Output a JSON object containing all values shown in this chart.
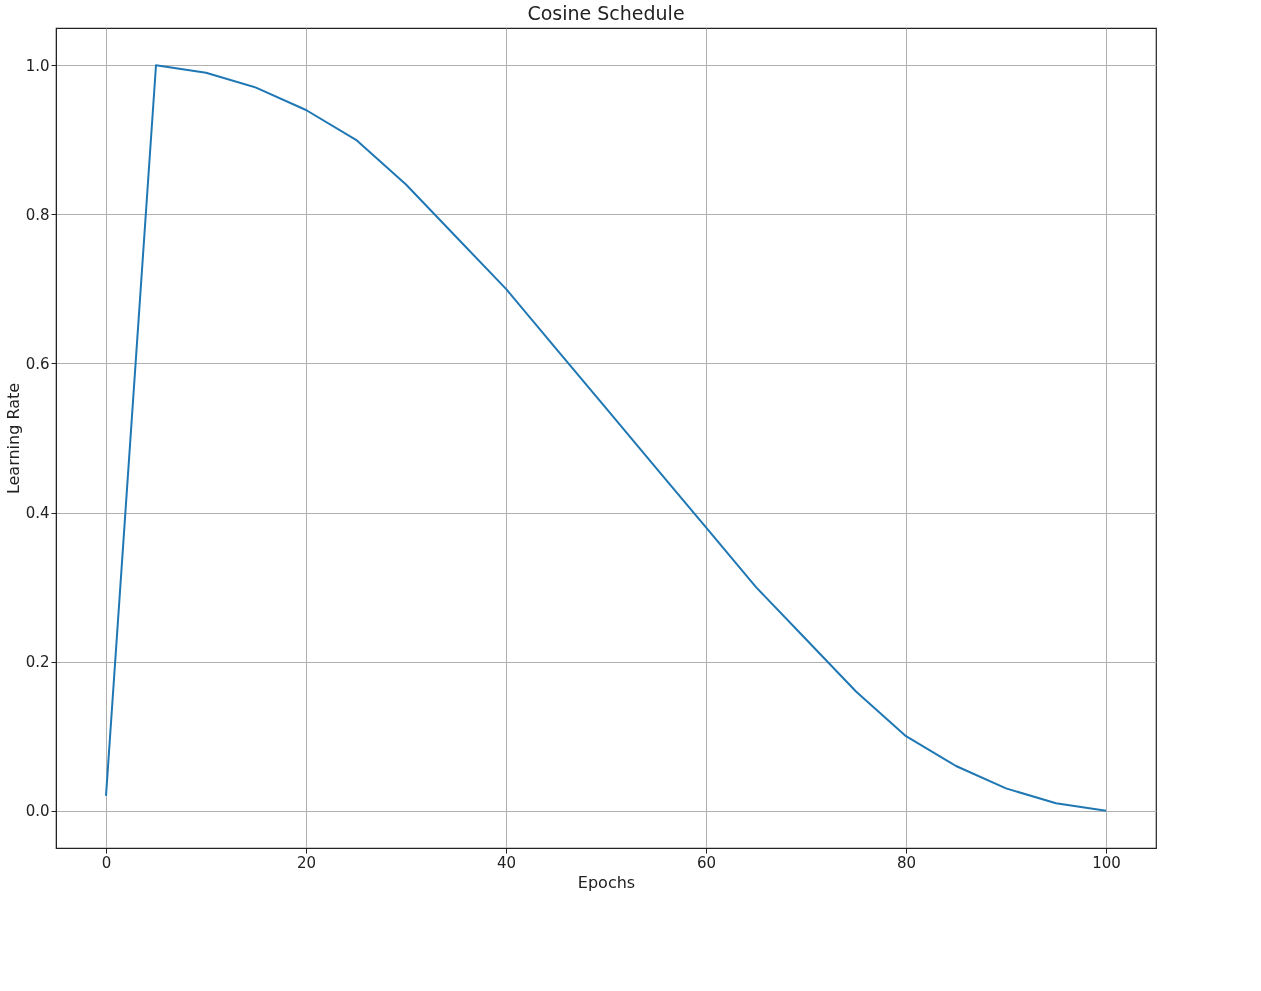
{
  "chart_data": {
    "type": "line",
    "title": "Cosine Schedule",
    "xlabel": "Epochs",
    "ylabel": "Learning Rate",
    "x": [
      0,
      5,
      10,
      15,
      20,
      25,
      30,
      35,
      40,
      45,
      50,
      55,
      60,
      65,
      70,
      75,
      80,
      85,
      90,
      95,
      100
    ],
    "series": [
      {
        "color": "#1f77b4",
        "values": [
          0.02,
          1.0,
          0.99,
          0.97,
          0.94,
          0.9,
          0.84,
          0.77,
          0.7,
          0.62,
          0.54,
          0.46,
          0.38,
          0.3,
          0.23,
          0.16,
          0.1,
          0.06,
          0.03,
          0.01,
          0.0
        ]
      }
    ],
    "xlim": [
      -5,
      105
    ],
    "ylim": [
      -0.05,
      1.05
    ],
    "xticks": [
      0,
      20,
      40,
      60,
      80,
      100
    ],
    "yticks": [
      {
        "value": 0,
        "label": "0.0"
      },
      {
        "value": 0.2,
        "label": "0.2"
      },
      {
        "value": 0.4,
        "label": "0.4"
      },
      {
        "value": 0.6,
        "label": "0.6"
      },
      {
        "value": 0.8,
        "label": "0.8"
      },
      {
        "value": 1.0,
        "label": "1.0"
      }
    ],
    "grid": true,
    "marker": "none",
    "line_style": "solid"
  }
}
